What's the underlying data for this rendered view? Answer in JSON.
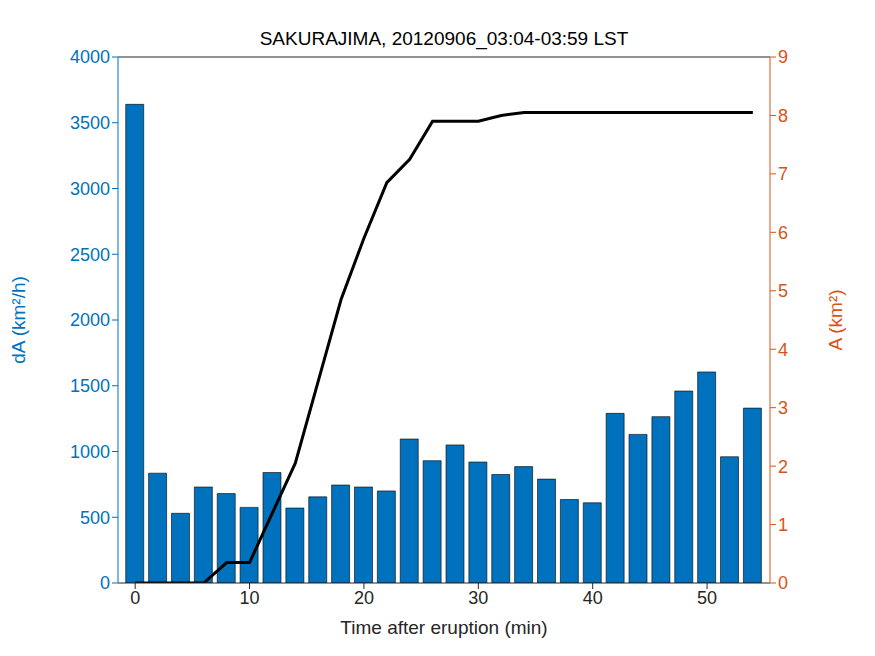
{
  "chart_data": {
    "type": "bar",
    "title": "SAKURAJIMA, 20120906_03:04-03:59 LST",
    "x_label": "Time after eruption (min)",
    "y_label": "dA (km²/h)",
    "y2_label": "A (km²)",
    "x": [
      0,
      2,
      4,
      6,
      8,
      10,
      12,
      14,
      16,
      18,
      20,
      22,
      24,
      26,
      28,
      30,
      32,
      34,
      36,
      38,
      40,
      42,
      44,
      46,
      48,
      50,
      52,
      54
    ],
    "xlim": [
      -1.5,
      55.5
    ],
    "xticks": [
      0,
      10,
      20,
      30,
      40,
      50
    ],
    "ylim": [
      0,
      4000
    ],
    "yticks": [
      0,
      500,
      1000,
      1500,
      2000,
      2500,
      3000,
      3500,
      4000
    ],
    "y2lim": [
      0,
      9
    ],
    "y2ticks": [
      0,
      1,
      2,
      3,
      4,
      5,
      6,
      7,
      8,
      9
    ],
    "series": [
      {
        "type": "bar",
        "color": "#0072bd",
        "values": [
          3640,
          835,
          530,
          730,
          680,
          575,
          840,
          570,
          655,
          745,
          730,
          700,
          1095,
          930,
          1050,
          920,
          825,
          885,
          790,
          635,
          610,
          1290,
          1130,
          1265,
          1460,
          1605,
          960,
          1330
        ]
      },
      {
        "type": "line",
        "axis": "y2",
        "color": "#000000",
        "values": [
          0,
          0,
          0,
          0,
          0.35,
          0.35,
          1.2,
          2.05,
          3.45,
          4.85,
          5.9,
          6.85,
          7.25,
          7.9,
          7.9,
          7.9,
          8.0,
          8.05,
          8.05,
          8.05,
          8.05,
          8.05,
          8.05,
          8.05,
          8.05,
          8.05,
          8.05,
          8.05
        ]
      }
    ]
  }
}
